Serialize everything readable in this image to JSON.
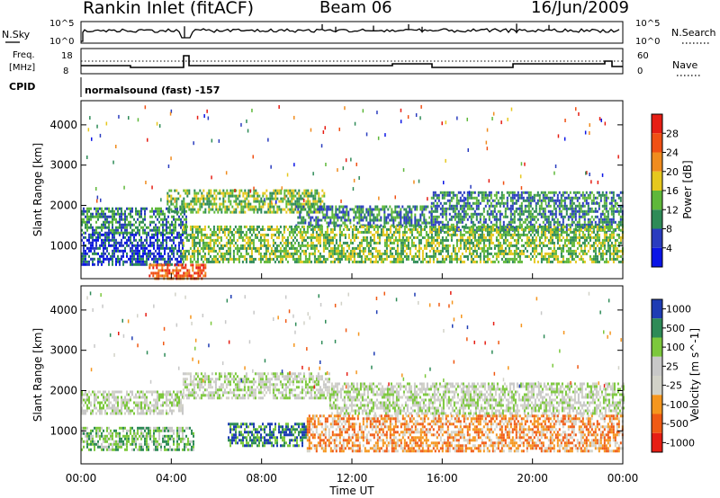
{
  "header": {
    "station": "Rankin Inlet (fitACF)",
    "beam": "Beam 06",
    "date": "16/Jun/2009"
  },
  "panels": {
    "nsky_label": "N.Sky",
    "nsky_ticks": [
      "10^5",
      "10^0"
    ],
    "nsearch_label": "N.Search",
    "nsearch_ticks": [
      "10^5",
      "10^0"
    ],
    "freq_label": "Freq.",
    "freq_unit": "[MHz]",
    "freq_ticks": [
      "18",
      "8"
    ],
    "nave_label": "Nave",
    "nave_ticks": [
      "60",
      "0"
    ],
    "cpid_label": "CPID",
    "cpid_value": "normalsound (fast) -157"
  },
  "colors": {
    "power": [
      "#0a14e6",
      "#2a3cbf",
      "#2e8b57",
      "#5fb83a",
      "#e6c81e",
      "#f08c1e",
      "#f05014",
      "#e61e14"
    ],
    "velocity": [
      "#e61e14",
      "#f05a14",
      "#f5961e",
      "#d2d2c8",
      "#c8c8c8",
      "#7cc83c",
      "#2e8b57",
      "#1e3cb4"
    ]
  },
  "chart_data": [
    {
      "type": "heatmap",
      "name": "power",
      "ylabel": "Slant Range [km]",
      "yticks": [
        "1000",
        "2000",
        "3000",
        "4000"
      ],
      "ylim": [
        180,
        4600
      ],
      "xlim": [
        0,
        24
      ],
      "colorbar_label": "Power [dB]",
      "colorbar_ticks": [
        "4",
        "8",
        "12",
        "16",
        "20",
        "24",
        "28"
      ],
      "echo_bands": [
        {
          "t0": 0.0,
          "t1": 4.7,
          "r0": 1300,
          "r1": 1950,
          "level": 2
        },
        {
          "t0": 3.8,
          "t1": 10.8,
          "r0": 1800,
          "r1": 2400,
          "level": 3
        },
        {
          "t0": 9.5,
          "t1": 15.5,
          "r0": 1500,
          "r1": 2000,
          "level": 2
        },
        {
          "t0": 15.5,
          "t1": 24.0,
          "r0": 1400,
          "r1": 2350,
          "level": 2
        },
        {
          "t0": 0.0,
          "t1": 4.5,
          "r0": 500,
          "r1": 1300,
          "level": 1
        },
        {
          "t0": 4.5,
          "t1": 24.0,
          "r0": 600,
          "r1": 1500,
          "level": 3
        },
        {
          "t0": 3.0,
          "t1": 5.5,
          "r0": 180,
          "r1": 550,
          "level": 6
        }
      ],
      "xticks": [
        "00:00",
        "04:00",
        "08:00",
        "12:00",
        "16:00",
        "20:00",
        "00:00"
      ]
    },
    {
      "type": "heatmap",
      "name": "velocity",
      "ylabel": "Slant Range [km]",
      "yticks": [
        "1000",
        "2000",
        "3000",
        "4000"
      ],
      "ylim": [
        180,
        4600
      ],
      "xlim": [
        0,
        24
      ],
      "colorbar_label": "Velocity [m s^-1]",
      "colorbar_ticks": [
        "1000",
        "500",
        "100",
        "25",
        "-25",
        "-100",
        "-500",
        "-1000"
      ],
      "echo_bands": [
        {
          "t0": 0.0,
          "t1": 4.5,
          "r0": 1400,
          "r1": 2000,
          "level": 4
        },
        {
          "t0": 4.5,
          "t1": 11.0,
          "r0": 1800,
          "r1": 2450,
          "level": 4
        },
        {
          "t0": 11.0,
          "t1": 24.0,
          "r0": 1400,
          "r1": 2200,
          "level": 4
        },
        {
          "t0": 0.0,
          "t1": 5.0,
          "r0": 500,
          "r1": 1100,
          "level": 5
        },
        {
          "t0": 6.5,
          "t1": 10.0,
          "r0": 600,
          "r1": 1200,
          "level": 6
        },
        {
          "t0": 10.0,
          "t1": 24.0,
          "r0": 500,
          "r1": 1400,
          "level": 2
        }
      ],
      "xticks": [
        "00:00",
        "04:00",
        "08:00",
        "12:00",
        "16:00",
        "20:00",
        "00:00"
      ],
      "xlabel": "Time UT"
    }
  ]
}
